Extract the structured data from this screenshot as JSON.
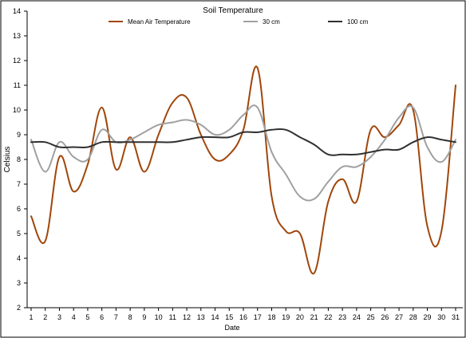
{
  "chart_data": {
    "type": "line",
    "title": "Soil Temperature",
    "xlabel": "Date",
    "ylabel": "Celsius",
    "x": [
      1,
      2,
      3,
      4,
      5,
      6,
      7,
      8,
      9,
      10,
      11,
      12,
      13,
      14,
      15,
      16,
      17,
      18,
      19,
      20,
      21,
      22,
      23,
      24,
      25,
      26,
      27,
      28,
      29,
      30,
      31
    ],
    "xticks": [
      "1",
      "2",
      "3",
      "4",
      "5",
      "6",
      "7",
      "8",
      "9",
      "10",
      "11",
      "12",
      "13",
      "14",
      "15",
      "16",
      "17",
      "18",
      "19",
      "20",
      "21",
      "22",
      "23",
      "24",
      "25",
      "26",
      "27",
      "28",
      "29",
      "30",
      "31"
    ],
    "ylim": [
      2,
      14
    ],
    "yticks": [
      "2",
      "3",
      "4",
      "5",
      "6",
      "7",
      "8",
      "9",
      "10",
      "11",
      "12",
      "13",
      "14"
    ],
    "legend_position": "top",
    "grid": false,
    "series": [
      {
        "name": "Mean Air Temperature",
        "color": "#a0460a",
        "values": [
          5.7,
          4.7,
          8.1,
          6.7,
          7.8,
          10.1,
          7.6,
          8.9,
          7.5,
          9.0,
          10.3,
          10.5,
          9.0,
          8.0,
          8.2,
          9.2,
          11.7,
          6.5,
          5.1,
          5.0,
          3.4,
          6.3,
          7.2,
          6.3,
          9.2,
          8.9,
          9.4,
          10.0,
          5.3,
          5.1,
          11.0
        ]
      },
      {
        "name": "30 cm",
        "color": "#a0a0a0",
        "values": [
          8.8,
          7.5,
          8.7,
          8.1,
          8.0,
          9.2,
          8.7,
          8.8,
          9.1,
          9.4,
          9.5,
          9.6,
          9.4,
          9.0,
          9.2,
          9.8,
          10.1,
          8.3,
          7.4,
          6.5,
          6.4,
          7.1,
          7.7,
          7.7,
          8.1,
          8.8,
          9.7,
          10.1,
          8.5,
          7.9,
          8.8
        ]
      },
      {
        "name": "100 cm",
        "color": "#303030",
        "values": [
          8.7,
          8.7,
          8.5,
          8.5,
          8.5,
          8.7,
          8.7,
          8.7,
          8.7,
          8.7,
          8.7,
          8.8,
          8.9,
          8.9,
          8.9,
          9.1,
          9.1,
          9.2,
          9.2,
          8.9,
          8.6,
          8.2,
          8.2,
          8.2,
          8.3,
          8.4,
          8.4,
          8.7,
          8.9,
          8.8,
          8.7
        ]
      }
    ]
  }
}
